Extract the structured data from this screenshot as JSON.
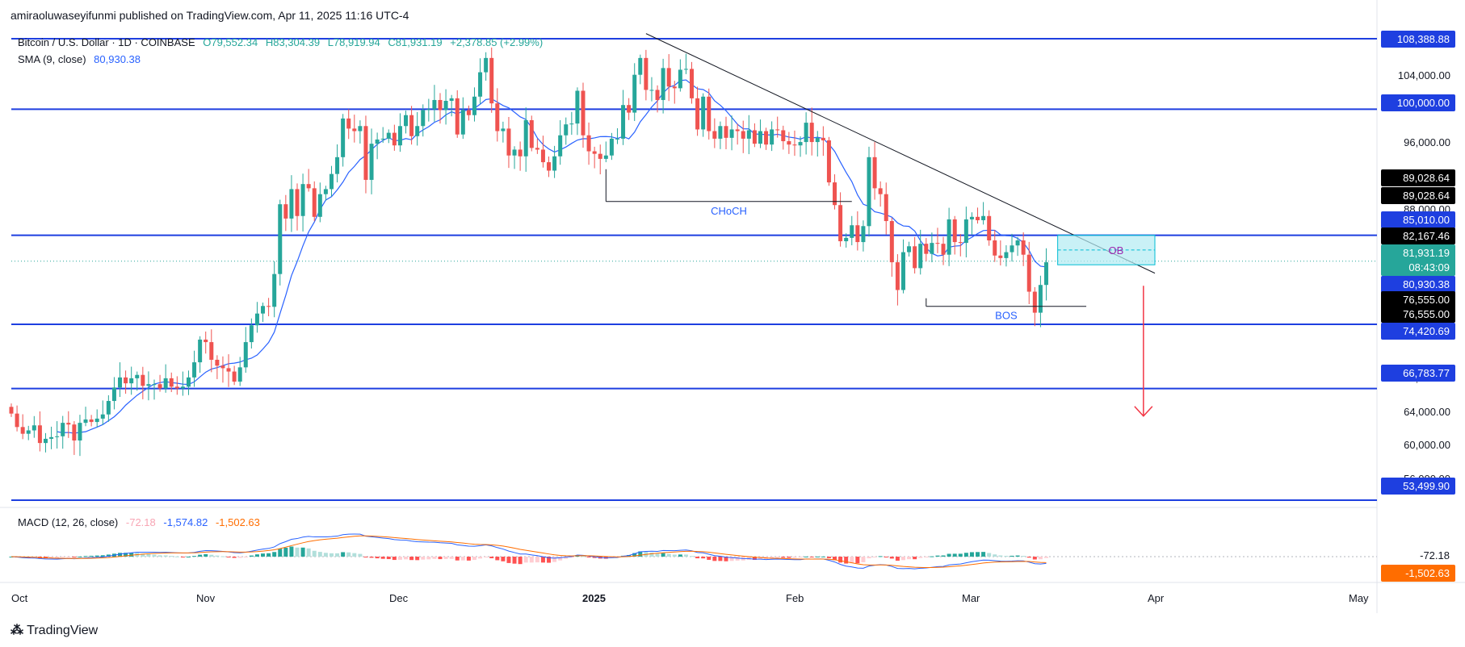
{
  "header": {
    "published": "amiraoluwaseyifunmi published on TradingView.com, Apr 11, 2025 11:16 UTC-4"
  },
  "legend": {
    "symbol": "Bitcoin / U.S. Dollar · 1D · COINBASE",
    "open": "O79,552.34",
    "high": "H83,304.39",
    "low": "L78,919.94",
    "close": "C81,931.19",
    "change": "+2,378.85 (+2.99%)",
    "sma_label": "SMA (9, close)",
    "sma_value": "80,930.38",
    "macd_label": "MACD (12, 26, close)",
    "macd_hist": "-72.18",
    "macd_line": "-1,574.82",
    "macd_signal": "-1,502.63"
  },
  "colors": {
    "up": "#26a69a",
    "down": "#ef5350",
    "level_line": "#1e3fe0",
    "sma": "#2962ff",
    "macd_line": "#2962ff",
    "signal_line": "#ff6d00",
    "ob_fill": "#b2ebf2",
    "black_label": "#000000",
    "blue_label": "#1e3fe0",
    "green_label": "#26a69a"
  },
  "price_scale": {
    "ticks": [
      "104,000.00",
      "96,000.00",
      "92,000.00",
      "88,000.00",
      "68,000.00",
      "64,000.00",
      "60,000.00",
      "56,000.00"
    ],
    "labels": [
      {
        "text": "108,388.88",
        "style": "blue"
      },
      {
        "text": "100,000.00",
        "style": "blue"
      },
      {
        "text": "89,028.64",
        "style": "black"
      },
      {
        "text": "89,028.64",
        "style": "black"
      },
      {
        "text": "85,010.00",
        "style": "blue"
      },
      {
        "text": "82,167.46",
        "style": "black"
      },
      {
        "text": "81,931.19",
        "style": "green"
      },
      {
        "text": "08:43:09",
        "style": "green"
      },
      {
        "text": "80,930.38",
        "style": "blue"
      },
      {
        "text": "76,555.00",
        "style": "black"
      },
      {
        "text": "76,555.00",
        "style": "black"
      },
      {
        "text": "74,420.69",
        "style": "blue"
      },
      {
        "text": "66,783.77",
        "style": "blue"
      },
      {
        "text": "53,499.90",
        "style": "blue"
      }
    ],
    "macd_labels": [
      {
        "text": "-72.18",
        "style": "pink"
      },
      {
        "text": "-1,502.63",
        "style": "orange"
      }
    ]
  },
  "time_axis": [
    "Oct",
    "Nov",
    "Dec",
    "2025",
    "Feb",
    "Mar",
    "Apr",
    "May"
  ],
  "annotations": {
    "choch": "CHoCH",
    "bos": "BOS",
    "ob": "OB"
  },
  "footer": {
    "brand": "TradingView"
  },
  "chart_data": {
    "type": "candlestick",
    "symbol": "BTCUSD",
    "interval": "1D",
    "ylim": [
      53499.9,
      108388.88
    ],
    "horizontal_levels": [
      108388.88,
      100000.0,
      85010.0,
      74420.69,
      66783.77,
      53499.9
    ],
    "trendline": {
      "from": {
        "date": "2025-01-20",
        "price": 109000
      },
      "to": {
        "date": "2025-04-19",
        "price": 80500
      }
    },
    "choch_level": {
      "price": 89028.64,
      "from": "2025-01-13",
      "to": "2025-02-25"
    },
    "bos_level": {
      "price": 76555.0,
      "from": "2025-03-10",
      "to": "2025-04-07"
    },
    "order_block": {
      "top": 85010.0,
      "bottom": 81500.0,
      "from": "2025-04-02",
      "to": "2025-04-19"
    },
    "projection": {
      "from": 79000,
      "to": 63500,
      "date": "2025-04-17"
    },
    "series": [
      {
        "name": "Bitcoin / U.S. Dollar",
        "close": [
          63800,
          62200,
          61400,
          61800,
          62400,
          60300,
          60800,
          61000,
          61100,
          62700,
          62500,
          60600,
          62700,
          63100,
          62800,
          63200,
          63700,
          65300,
          66900,
          68100,
          67400,
          68000,
          68400,
          67100,
          67300,
          67300,
          66800,
          68000,
          67000,
          66800,
          67000,
          68100,
          69900,
          72600,
          72300,
          70200,
          69500,
          69200,
          68800,
          67600,
          69300,
          72300,
          74300,
          75700,
          76600,
          76500,
          80400,
          88700,
          87000,
          90500,
          87300,
          91100,
          90600,
          87200,
          89900,
          90500,
          92300,
          94300,
          98900,
          97700,
          97400,
          98000,
          91600,
          95900,
          96400,
          96500,
          97200,
          95700,
          98000,
          99300,
          96800,
          98000,
          99900,
          100000,
          101100,
          99900,
          101000,
          101300,
          97000,
          99900,
          99300,
          101500,
          104400,
          106100,
          100700,
          97400,
          97700,
          94500,
          95200,
          94400,
          98700,
          95400,
          95200,
          93700,
          92700,
          94400,
          96900,
          98200,
          98300,
          102200,
          96900,
          95000,
          94700,
          94100,
          94500,
          96500,
          96500,
          100500,
          99600,
          104100,
          106100,
          102300,
          102300,
          101100,
          104900,
          102700,
          102500,
          104700,
          104800,
          101300,
          97600,
          101500,
          97400,
          96500,
          98000,
          96600,
          97600,
          97400,
          96500,
          97500,
          95900,
          97400,
          95800,
          97600,
          97500,
          96200,
          95800,
          95700,
          96100,
          98400,
          96100,
          96600,
          96300,
          91300,
          88600,
          84300,
          84700,
          86200,
          84200,
          86100,
          94300,
          90600,
          89900,
          86700,
          81800,
          78500,
          83000,
          83700,
          81100,
          84000,
          82800,
          84100,
          84000,
          82700,
          86900,
          84200,
          84100,
          86900,
          87200,
          86800,
          87300,
          84400,
          82600,
          82300,
          83000,
          83800,
          84400,
          82700,
          78300,
          75800,
          79100,
          81800
        ]
      }
    ],
    "sma": {
      "name": "SMA (9, close)",
      "last": 80930.38
    },
    "macd": {
      "name": "MACD (12, 26, close)",
      "hist_last": -72.18,
      "macd_last": -1574.82,
      "signal_last": -1502.63
    },
    "xlabel": "",
    "ylabel": ""
  }
}
